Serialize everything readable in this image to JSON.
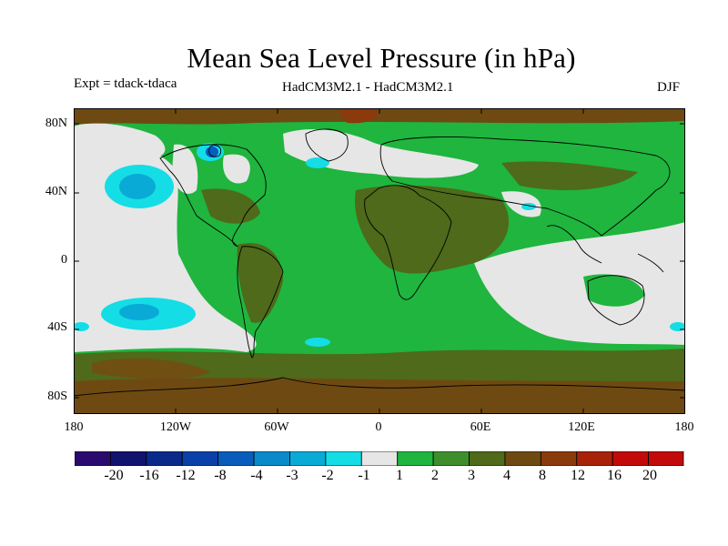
{
  "header": {
    "title": "Mean Sea Level Pressure (in hPa)",
    "expt": "Expt = tdack-tdaca",
    "models": "HadCM3M2.1 - HadCM3M2.1",
    "season": "DJF"
  },
  "map": {
    "lat_ticks": [
      "80N",
      "40N",
      "0",
      "40S",
      "80S"
    ],
    "lon_ticks": [
      "180",
      "120W",
      "60W",
      "0",
      "60E",
      "120E",
      "180"
    ],
    "projection": "cylindrical equidistant",
    "lon_range": [
      -180,
      180
    ],
    "lat_range": [
      -90,
      90
    ]
  },
  "colorbar": {
    "labels": [
      "-20",
      "-16",
      "-12",
      "-8",
      "-4",
      "-3",
      "-2",
      "-1",
      "1",
      "2",
      "3",
      "4",
      "8",
      "12",
      "16",
      "20"
    ],
    "colors": [
      "#2a0a6e",
      "#12126f",
      "#0a2a8a",
      "#0a40a8",
      "#0a5cbc",
      "#0a8ac8",
      "#0aaad6",
      "#14dde6",
      "#e6e6e6",
      "#1fb53e",
      "#3e8f2c",
      "#4e6a1a",
      "#6e4a12",
      "#8a3a0c",
      "#a8220a",
      "#c20a0a"
    ]
  }
}
